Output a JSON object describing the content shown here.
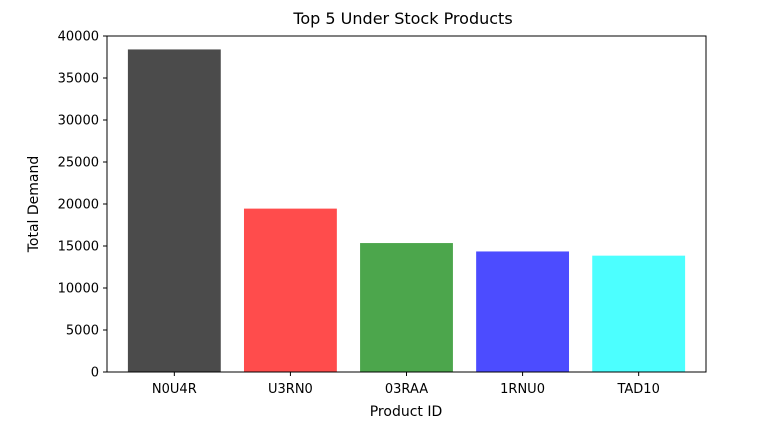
{
  "chart_data": {
    "type": "bar",
    "title": "Top 5 Under Stock Products",
    "xlabel": "Product ID",
    "ylabel": "Total Demand",
    "categories": [
      "N0U4R",
      "U3RN0",
      "03RAA",
      "1RNU0",
      "TAD10"
    ],
    "values": [
      38400,
      19450,
      15350,
      14350,
      13850
    ],
    "colors": [
      "#4b4b4b",
      "#ff4c4c",
      "#4ca64c",
      "#4c4cff",
      "#4cffff"
    ],
    "ylim": [
      0,
      40000
    ],
    "yticks": [
      0,
      5000,
      10000,
      15000,
      20000,
      25000,
      30000,
      35000,
      40000
    ],
    "grid": false,
    "legend": false
  }
}
